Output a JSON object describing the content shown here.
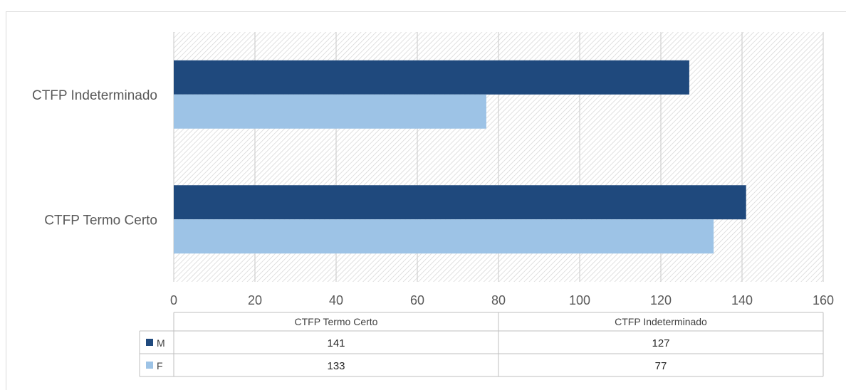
{
  "chart_data": {
    "type": "bar",
    "orientation": "horizontal",
    "categories": [
      "CTFP Indeterminado",
      "CTFP Termo Certo"
    ],
    "series": [
      {
        "name": "M",
        "color": "#1f497d",
        "values": [
          127,
          141
        ]
      },
      {
        "name": "F",
        "color": "#9dc3e6",
        "values": [
          77,
          133
        ]
      }
    ],
    "xlim": [
      0,
      160
    ],
    "x_ticks": [
      0,
      20,
      40,
      60,
      80,
      100,
      120,
      140,
      160
    ],
    "grid": true,
    "plot_background": "hatched",
    "data_table": {
      "columns": [
        "CTFP Termo Certo",
        "CTFP Indeterminado"
      ],
      "rows": [
        {
          "series": "M",
          "values": [
            "141",
            "127"
          ]
        },
        {
          "series": "F",
          "values": [
            "133",
            "77"
          ]
        }
      ]
    }
  }
}
